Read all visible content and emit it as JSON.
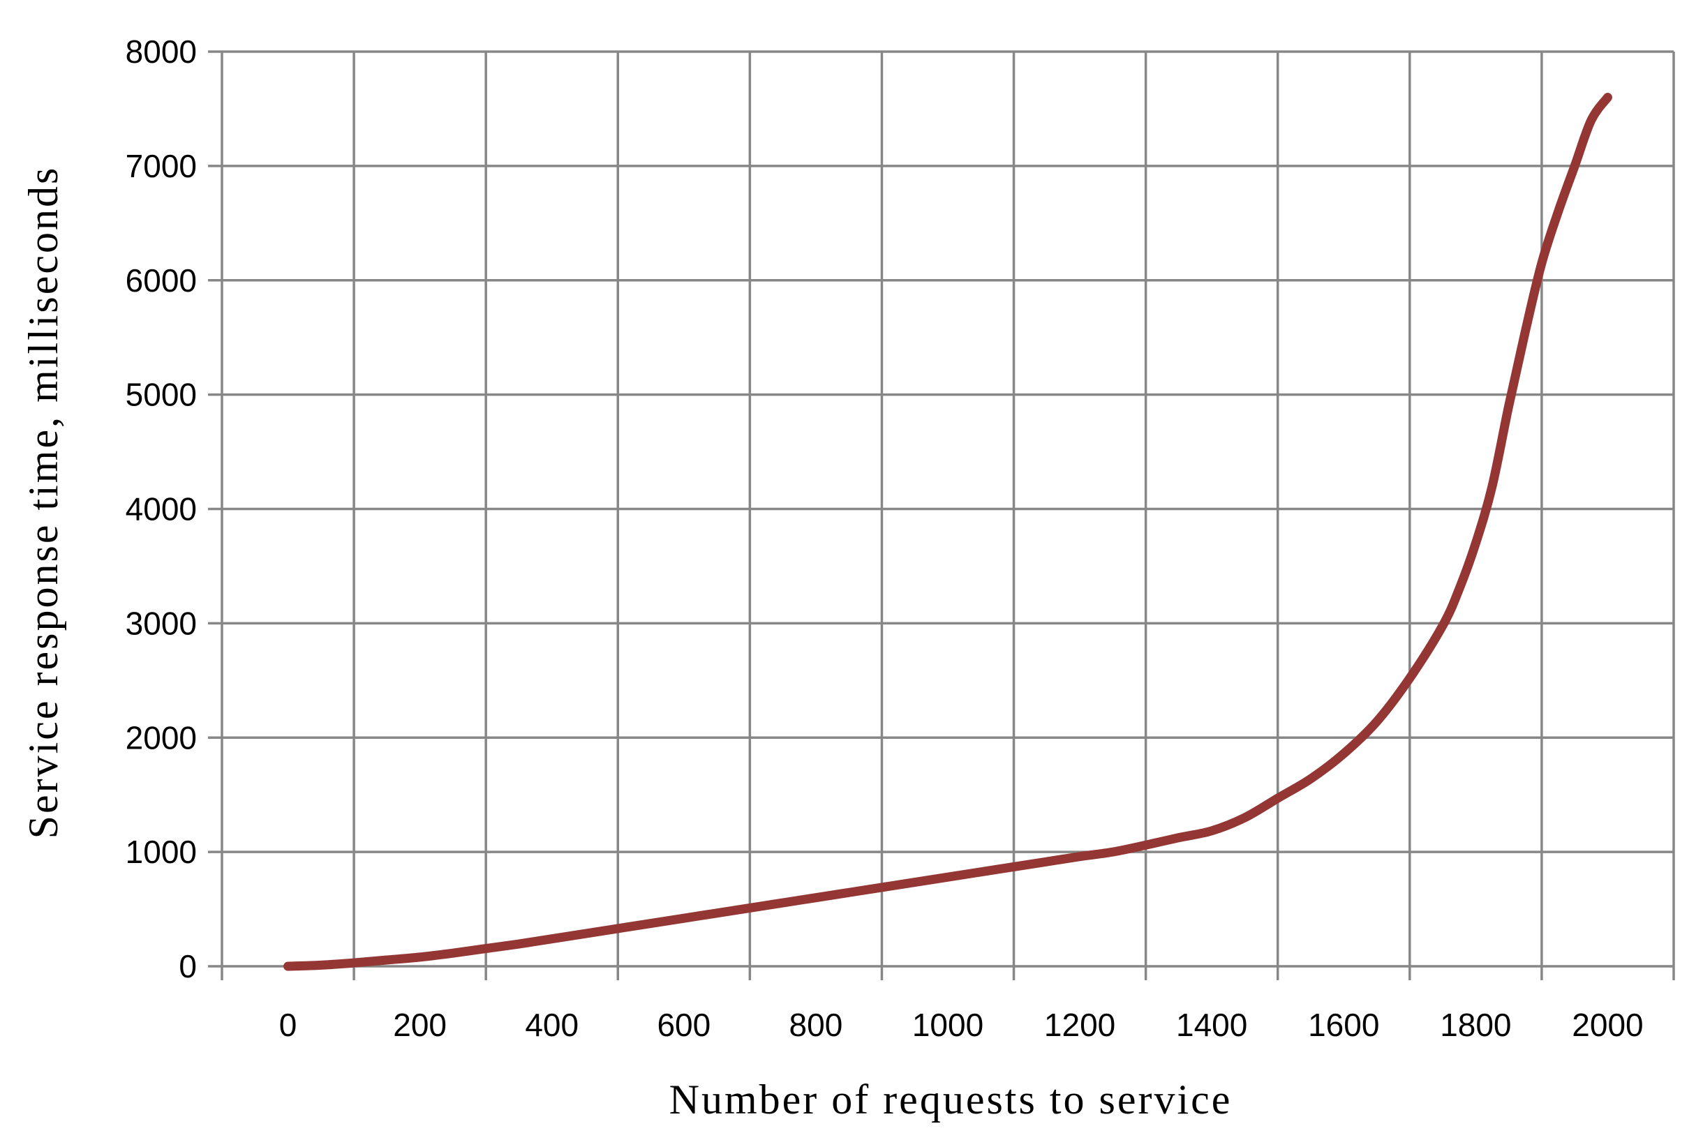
{
  "chart_data": {
    "type": "line",
    "title": "",
    "xlabel": "Number of requests to service",
    "ylabel": "Service response time, milliseconds",
    "xlim": [
      -100,
      2100
    ],
    "ylim": [
      0,
      8000
    ],
    "x_ticks": [
      0,
      200,
      400,
      600,
      800,
      1000,
      1200,
      1400,
      1600,
      1800,
      2000
    ],
    "y_ticks": [
      0,
      1000,
      2000,
      3000,
      4000,
      5000,
      6000,
      7000,
      8000
    ],
    "x_tick_labels": [
      "0",
      "200",
      "400",
      "600",
      "800",
      "1000",
      "1200",
      "1400",
      "1600",
      "1800",
      "2000"
    ],
    "y_tick_labels": [
      "0",
      "1000",
      "2000",
      "3000",
      "4000",
      "5000",
      "6000",
      "7000",
      "8000"
    ],
    "grid": true,
    "legend": "none",
    "series": [
      {
        "color": "#943634",
        "x": [
          0,
          50,
          100,
          150,
          200,
          250,
          300,
          350,
          400,
          450,
          500,
          550,
          600,
          650,
          700,
          750,
          800,
          850,
          900,
          950,
          1000,
          1050,
          1100,
          1150,
          1200,
          1250,
          1300,
          1350,
          1400,
          1450,
          1500,
          1550,
          1600,
          1650,
          1700,
          1750,
          1775,
          1800,
          1825,
          1850,
          1875,
          1900,
          1925,
          1950,
          1975,
          2000
        ],
        "y": [
          0,
          10,
          30,
          55,
          80,
          115,
          155,
          195,
          240,
          285,
          330,
          375,
          420,
          465,
          510,
          555,
          600,
          645,
          690,
          735,
          780,
          825,
          870,
          915,
          960,
          1000,
          1060,
          1125,
          1185,
          1300,
          1470,
          1640,
          1860,
          2140,
          2520,
          2980,
          3300,
          3700,
          4200,
          4900,
          5550,
          6150,
          6600,
          7000,
          7400,
          7600
        ]
      }
    ]
  }
}
